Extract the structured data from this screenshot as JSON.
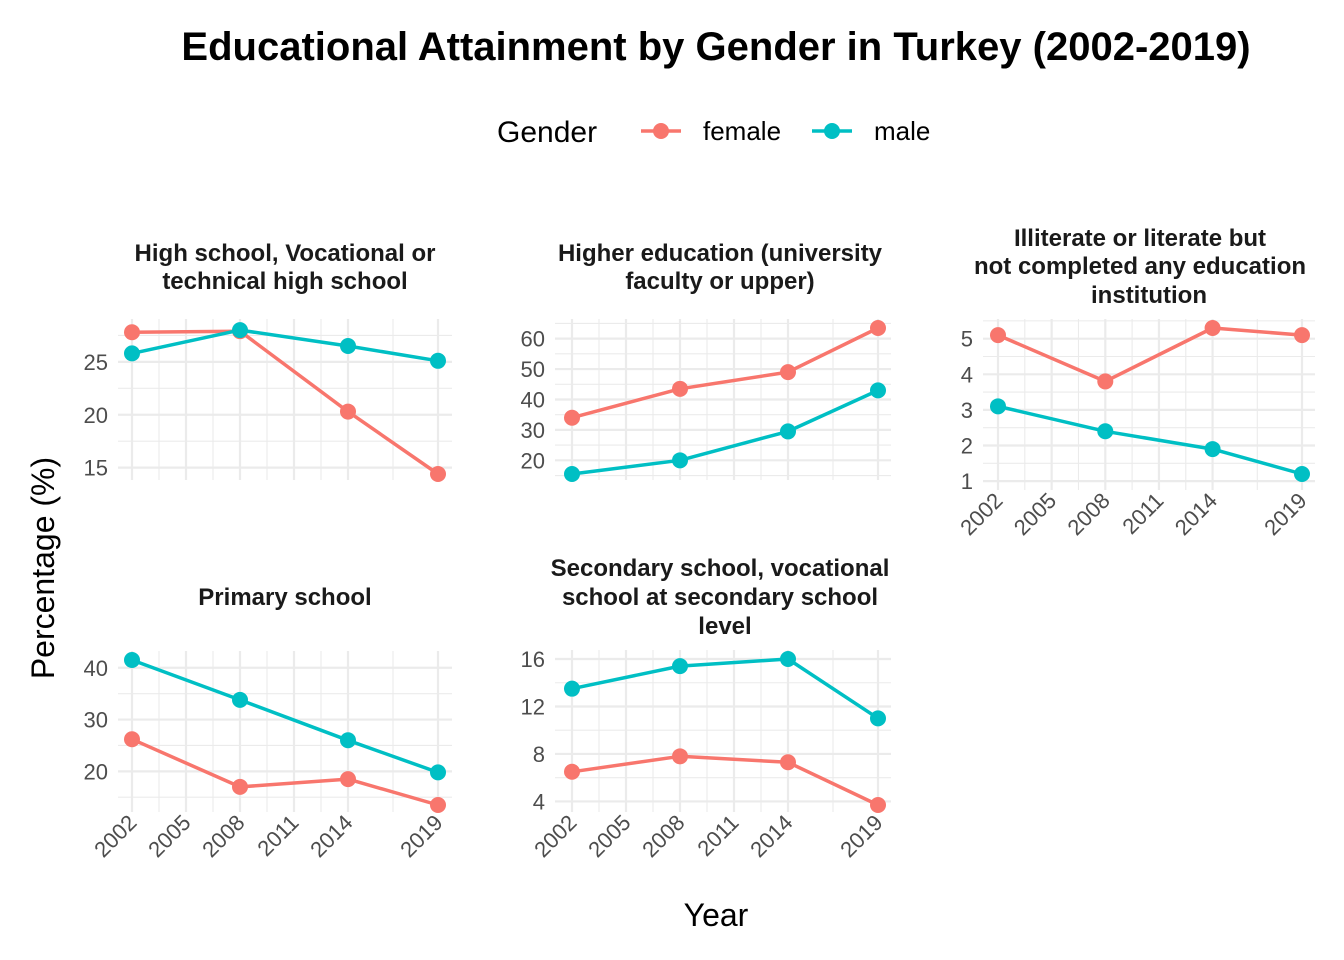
{
  "title": "Educational Attainment by Gender in Turkey (2002-2019)",
  "legend": {
    "title": "Gender",
    "items": [
      {
        "label": "female",
        "color": "#F8766D"
      },
      {
        "label": "male",
        "color": "#00BFC4"
      }
    ]
  },
  "x_axis_title": "Year",
  "y_axis_title": "Percentage (%)",
  "chart_data": {
    "type": "line",
    "x": [
      2002,
      2008,
      2014,
      2019
    ],
    "x_ticks": [
      2002,
      2005,
      2008,
      2011,
      2014,
      2019
    ],
    "xlim": [
      2002,
      2019
    ],
    "grid": true,
    "legend_position": "top",
    "panels": [
      {
        "strip_lines": [
          "High school, Vocational or",
          "technical high school"
        ],
        "y_ticks": [
          15,
          20,
          25
        ],
        "ylim": [
          14.4,
          28.2
        ],
        "series": [
          {
            "name": "female",
            "values": [
              27.8,
              27.9,
              20.3,
              14.4
            ]
          },
          {
            "name": "male",
            "values": [
              25.8,
              28.0,
              26.5,
              25.1
            ]
          }
        ]
      },
      {
        "strip_lines": [
          "Higher education (university",
          "faculty or upper)"
        ],
        "y_ticks": [
          20,
          30,
          40,
          50,
          60
        ],
        "ylim": [
          15.5,
          63.5
        ],
        "series": [
          {
            "name": "female",
            "values": [
              34.0,
              43.5,
              49.0,
              63.5
            ]
          },
          {
            "name": "male",
            "values": [
              15.5,
              20.0,
              29.5,
              43.0
            ]
          }
        ]
      },
      {
        "strip_lines": [
          "Illiterate or literate but",
          "not completed any education",
          "institution"
        ],
        "y_ticks": [
          1,
          2,
          3,
          4,
          5
        ],
        "ylim": [
          1.2,
          5.3
        ],
        "series": [
          {
            "name": "female",
            "values": [
              5.1,
              3.8,
              5.3,
              5.1
            ]
          },
          {
            "name": "male",
            "values": [
              3.1,
              2.4,
              1.9,
              1.2
            ]
          }
        ]
      },
      {
        "strip_lines": [
          "Primary school"
        ],
        "y_ticks": [
          20,
          30,
          40
        ],
        "ylim": [
          13.5,
          41.5
        ],
        "series": [
          {
            "name": "female",
            "values": [
              26.2,
              17.0,
              18.5,
              13.5
            ]
          },
          {
            "name": "male",
            "values": [
              41.5,
              33.8,
              26.0,
              19.8
            ]
          }
        ]
      },
      {
        "strip_lines": [
          "Secondary school, vocational",
          "school at secondary school",
          "level"
        ],
        "y_ticks": [
          4,
          8,
          12,
          16
        ],
        "ylim": [
          3.7,
          16.0
        ],
        "series": [
          {
            "name": "female",
            "values": [
              6.5,
              7.8,
              7.3,
              3.7
            ]
          },
          {
            "name": "male",
            "values": [
              13.5,
              15.4,
              16.0,
              11.0
            ]
          }
        ]
      }
    ]
  }
}
